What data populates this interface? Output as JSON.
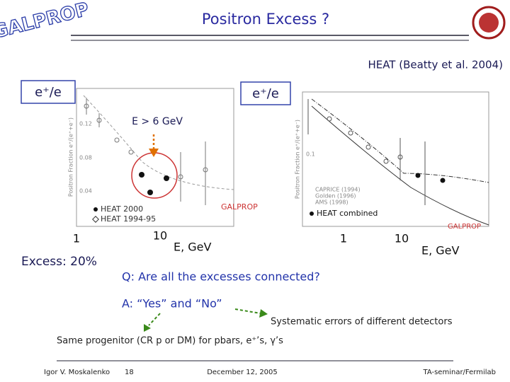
{
  "header": {
    "logo": "GALPROP",
    "title": "Positron Excess ?"
  },
  "reference": "HEAT (Beatty et al. 2004)",
  "labels": {
    "ratio_left": "e⁺/e",
    "ratio_right": "e⁺/e",
    "energy_cut": "E > 6 GeV",
    "excess": "Excess: 20%"
  },
  "left_plot": {
    "y_axis_title": "Positron Fraction e⁺/(e⁺+e⁻)",
    "yticks": [
      "0.12",
      "0.08",
      "0.04"
    ],
    "legend": [
      "HEAT 2000",
      "HEAT 1994-95"
    ],
    "model": "GALPROP",
    "xticks": [
      "1",
      "10"
    ],
    "x_axis_title": "E, GeV"
  },
  "right_plot": {
    "y_axis_title": "Positron Fraction e⁺/(e⁺+e⁻)",
    "yticks": [
      "0.1"
    ],
    "legend": [
      "CAPRICE (1994)",
      "Golden (1996)",
      "AMS (1998)",
      "HEAT combined"
    ],
    "model": "GALPROP",
    "xticks": [
      "1",
      "10"
    ],
    "x_axis_title": "E, GeV"
  },
  "question": "Q: Are all the excesses connected?",
  "answer": "A: “Yes” and “No”",
  "note_systematic": "Systematic errors of different detectors",
  "note_progenitor": "Same progenitor (CR p or DM) for pbars, e⁺’s, γ’s",
  "footer": {
    "author": "Igor V. Moskalenko",
    "page": "18",
    "date": "December 12, 2005",
    "venue": "TA-seminar/Fermilab"
  }
}
